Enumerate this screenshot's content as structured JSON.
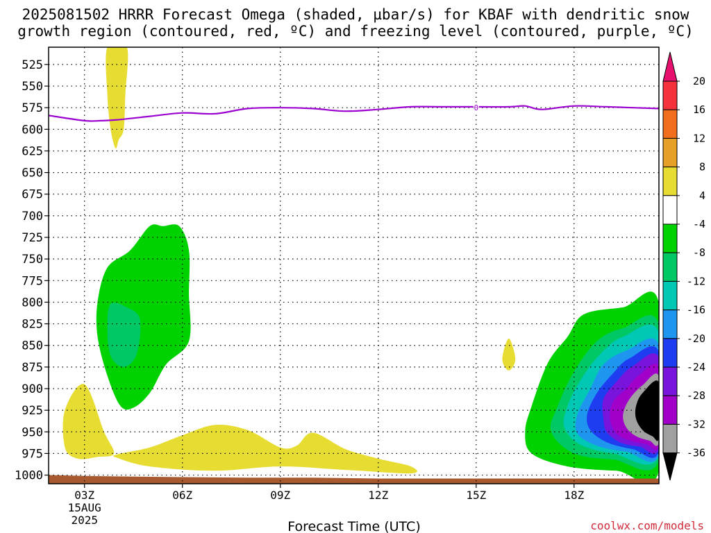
{
  "title_line1": "2025081502 HRRR Forecast Omega (shaded, µbar/s) for KBAF with dendritic snow",
  "title_line2": "growth region (contoured, red, ºC) and freezing level (contoured, purple, ºC)",
  "credit": "coolwx.com/models",
  "chart_data": {
    "type": "contour",
    "x_axis": {
      "label": "Forecast Time (UTC)",
      "range_hours_utc": [
        1.9,
        20.6
      ],
      "ticks": [
        {
          "hour": 3,
          "label": "03Z",
          "sub1": "15AUG",
          "sub2": "2025"
        },
        {
          "hour": 6,
          "label": "06Z"
        },
        {
          "hour": 9,
          "label": "09Z"
        },
        {
          "hour": 12,
          "label": "12Z"
        },
        {
          "hour": 15,
          "label": "15Z"
        },
        {
          "hour": 18,
          "label": "18Z"
        }
      ]
    },
    "y_axis": {
      "label": "",
      "units": "mb",
      "range": [
        1010,
        505
      ],
      "ticks": [
        525,
        550,
        575,
        600,
        625,
        650,
        675,
        700,
        725,
        750,
        775,
        800,
        825,
        850,
        875,
        900,
        925,
        950,
        975,
        1000
      ]
    },
    "grid": true,
    "colorbar": {
      "units": "µbar/s",
      "labels": [
        "20",
        "16",
        "12",
        "8",
        "4",
        "-4",
        "-8",
        "-12",
        "-16",
        "-20",
        "-24",
        "-28",
        "-32",
        "-36"
      ],
      "bins": [
        {
          "from": 20,
          "to": 24,
          "color": "#e8106e"
        },
        {
          "from": 16,
          "to": 20,
          "color": "#f5323c"
        },
        {
          "from": 12,
          "to": 16,
          "color": "#f06e1e"
        },
        {
          "from": 8,
          "to": 12,
          "color": "#e6a028"
        },
        {
          "from": 4,
          "to": 8,
          "color": "#e6dc32"
        },
        {
          "from": -4,
          "to": 4,
          "color": "#ffffff"
        },
        {
          "from": -8,
          "to": -4,
          "color": "#00d200"
        },
        {
          "from": -12,
          "to": -8,
          "color": "#00c864"
        },
        {
          "from": -16,
          "to": -12,
          "color": "#00c8b4"
        },
        {
          "from": -20,
          "to": -16,
          "color": "#1e96f0"
        },
        {
          "from": -24,
          "to": -20,
          "color": "#1e3cf0"
        },
        {
          "from": -28,
          "to": -24,
          "color": "#7814dc"
        },
        {
          "from": -32,
          "to": -28,
          "color": "#a000c8"
        },
        {
          "from": -36,
          "to": -32,
          "color": "#a0a0a0"
        },
        {
          "from": -40,
          "to": -36,
          "color": "#000000"
        }
      ]
    },
    "freezing_level": {
      "color": "#9b00d0",
      "label": "0",
      "label_point": [
        15.0,
        575
      ],
      "points": [
        [
          1.9,
          584
        ],
        [
          3.0,
          590
        ],
        [
          3.5,
          590
        ],
        [
          4.0,
          589
        ],
        [
          5.0,
          585
        ],
        [
          6.0,
          581
        ],
        [
          7.0,
          582
        ],
        [
          8.0,
          576
        ],
        [
          9.0,
          575
        ],
        [
          10.0,
          576
        ],
        [
          11.0,
          579
        ],
        [
          12.0,
          577
        ],
        [
          13.0,
          574
        ],
        [
          14.0,
          574
        ],
        [
          15.0,
          574
        ],
        [
          16.0,
          574
        ],
        [
          16.5,
          573
        ],
        [
          17.0,
          577
        ],
        [
          18.0,
          573
        ],
        [
          19.0,
          574
        ],
        [
          20.6,
          576
        ]
      ]
    },
    "regions": [
      {
        "value": "4 to 8",
        "color": "#e6dc32",
        "points": [
          [
            3.7,
            505
          ],
          [
            4.3,
            505
          ],
          [
            4.25,
            560
          ],
          [
            4.2,
            600
          ],
          [
            4.05,
            612
          ],
          [
            3.95,
            622
          ],
          [
            3.8,
            600
          ],
          [
            3.7,
            560
          ]
        ]
      },
      {
        "value": "4 to 8",
        "color": "#e6dc32",
        "points": [
          [
            2.4,
            925
          ],
          [
            3.0,
            895
          ],
          [
            3.6,
            950
          ],
          [
            3.9,
            975
          ],
          [
            3.4,
            979
          ],
          [
            2.8,
            981
          ],
          [
            2.4,
            968
          ]
        ]
      },
      {
        "value": "4 to 8",
        "color": "#e6dc32",
        "points": [
          [
            4.0,
            976
          ],
          [
            5.0,
            968
          ],
          [
            6.0,
            954
          ],
          [
            7.0,
            942
          ],
          [
            8.0,
            948
          ],
          [
            9.0,
            968
          ],
          [
            9.5,
            966
          ],
          [
            10.0,
            951
          ],
          [
            11.0,
            970
          ],
          [
            12.0,
            981
          ],
          [
            13.0,
            990
          ],
          [
            13.0,
            998
          ],
          [
            11.0,
            994
          ],
          [
            9.0,
            990
          ],
          [
            7.0,
            995
          ],
          [
            5.0,
            990
          ],
          [
            4.0,
            980
          ]
        ]
      },
      {
        "value": "4 to 8",
        "color": "#e6dc32",
        "points": [
          [
            16.0,
            842
          ],
          [
            16.2,
            866
          ],
          [
            16.0,
            879
          ],
          [
            15.8,
            866
          ]
        ]
      },
      {
        "value": "-4 to -8",
        "color": "#00d200",
        "points": [
          [
            4.4,
            740
          ],
          [
            5.0,
            712
          ],
          [
            5.4,
            712
          ],
          [
            5.9,
            712
          ],
          [
            6.2,
            740
          ],
          [
            6.2,
            790
          ],
          [
            6.2,
            845
          ],
          [
            5.5,
            872
          ],
          [
            5.0,
            905
          ],
          [
            4.5,
            922
          ],
          [
            4.1,
            920
          ],
          [
            3.7,
            885
          ],
          [
            3.4,
            840
          ],
          [
            3.4,
            800
          ],
          [
            3.7,
            760
          ]
        ]
      },
      {
        "value": "-8 to -12",
        "color": "#00c864",
        "points": [
          [
            3.8,
            802
          ],
          [
            4.3,
            806
          ],
          [
            4.7,
            820
          ],
          [
            4.6,
            860
          ],
          [
            4.2,
            875
          ],
          [
            3.8,
            862
          ],
          [
            3.7,
            830
          ]
        ]
      },
      {
        "value": "-4 to -8",
        "color": "#00d200",
        "points": [
          [
            20.6,
            801
          ],
          [
            19.5,
            806
          ],
          [
            18.3,
            814
          ],
          [
            17.8,
            840
          ],
          [
            17.2,
            870
          ],
          [
            16.7,
            920
          ],
          [
            16.5,
            950
          ],
          [
            16.7,
            975
          ],
          [
            17.8,
            990
          ],
          [
            19.3,
            995
          ],
          [
            20.6,
            995
          ]
        ]
      },
      {
        "value": "-8 to -12",
        "color": "#00c864",
        "points": [
          [
            20.6,
            826
          ],
          [
            19.5,
            830
          ],
          [
            18.7,
            845
          ],
          [
            18.0,
            880
          ],
          [
            17.5,
            920
          ],
          [
            17.3,
            950
          ],
          [
            18.0,
            975
          ],
          [
            19.2,
            982
          ],
          [
            20.6,
            983
          ]
        ]
      },
      {
        "value": "-12 to -16",
        "color": "#00c8b4",
        "points": [
          [
            20.6,
            836
          ],
          [
            19.5,
            840
          ],
          [
            18.8,
            860
          ],
          [
            18.2,
            890
          ],
          [
            17.8,
            920
          ],
          [
            17.7,
            945
          ],
          [
            18.2,
            965
          ],
          [
            19.2,
            975
          ],
          [
            20.6,
            978
          ]
        ]
      },
      {
        "value": "-16 to -20",
        "color": "#1e96f0",
        "points": [
          [
            20.6,
            850
          ],
          [
            19.6,
            856
          ],
          [
            18.9,
            872
          ],
          [
            18.5,
            900
          ],
          [
            18.1,
            930
          ],
          [
            18.1,
            952
          ],
          [
            18.7,
            966
          ],
          [
            19.6,
            973
          ],
          [
            20.6,
            976
          ]
        ]
      },
      {
        "value": "-20 to -24",
        "color": "#1e3cf0",
        "points": [
          [
            20.6,
            858
          ],
          [
            19.7,
            865
          ],
          [
            19.2,
            882
          ],
          [
            18.7,
            905
          ],
          [
            18.4,
            930
          ],
          [
            18.5,
            948
          ],
          [
            19.0,
            962
          ],
          [
            19.8,
            970
          ],
          [
            20.6,
            972
          ]
        ]
      },
      {
        "value": "-24 to -28",
        "color": "#7814dc",
        "points": [
          [
            20.6,
            865
          ],
          [
            19.8,
            874
          ],
          [
            19.3,
            892
          ],
          [
            18.9,
            912
          ],
          [
            18.9,
            935
          ],
          [
            19.0,
            950
          ],
          [
            19.4,
            962
          ],
          [
            20.0,
            967
          ],
          [
            20.6,
            968
          ]
        ]
      },
      {
        "value": "-28 to -32",
        "color": "#a000c8",
        "points": [
          [
            20.6,
            876
          ],
          [
            20.0,
            884
          ],
          [
            19.6,
            900
          ],
          [
            19.2,
            915
          ],
          [
            19.1,
            935
          ],
          [
            19.3,
            952
          ],
          [
            19.7,
            960
          ],
          [
            20.2,
            964
          ],
          [
            20.6,
            965
          ]
        ]
      },
      {
        "value": "-32 to -36",
        "color": "#a0a0a0",
        "points": [
          [
            20.6,
            886
          ],
          [
            20.1,
            896
          ],
          [
            19.7,
            912
          ],
          [
            19.5,
            930
          ],
          [
            19.6,
            945
          ],
          [
            19.9,
            955
          ],
          [
            20.3,
            960
          ],
          [
            20.6,
            961
          ]
        ]
      },
      {
        "value": "< -36",
        "color": "#000000",
        "points": [
          [
            20.6,
            893
          ],
          [
            20.1,
            905
          ],
          [
            19.9,
            920
          ],
          [
            19.9,
            935
          ],
          [
            20.1,
            948
          ],
          [
            20.4,
            955
          ],
          [
            20.6,
            956
          ]
        ]
      }
    ],
    "terrain": {
      "color": "#a85a2e",
      "top_points": [
        [
          1.9,
          1000
        ],
        [
          3.0,
          1001
        ],
        [
          5.0,
          1002
        ],
        [
          8.0,
          1003
        ],
        [
          10.0,
          1003
        ],
        [
          12.0,
          1004
        ],
        [
          16.0,
          1004
        ],
        [
          20.6,
          1004
        ]
      ]
    }
  }
}
